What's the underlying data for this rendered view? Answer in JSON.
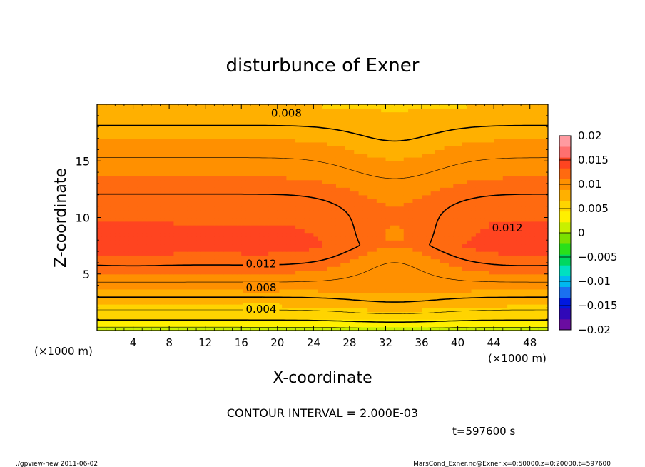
{
  "chart_data": {
    "type": "heatmap",
    "title": "disturbunce of Exner",
    "xlabel": "X-coordinate",
    "ylabel": "Z-coordinate",
    "x_unit_left": "(×1000 m)",
    "x_unit_right": "(×1000 m)",
    "xlim": [
      0,
      50
    ],
    "ylim": [
      0,
      20
    ],
    "x_ticks": [
      4,
      8,
      12,
      16,
      20,
      24,
      28,
      32,
      36,
      40,
      44,
      48
    ],
    "y_ticks": [
      5,
      10,
      15
    ],
    "contour_interval_text": "CONTOUR INTERVAL = 2.000E-03",
    "time_text": "t=597600 s",
    "colorbar": {
      "min": -0.02,
      "max": 0.02,
      "tick_labels": [
        "0.02",
        "0.015",
        "0.01",
        "0.005",
        "0",
        "−0.005",
        "−0.01",
        "−0.015",
        "−0.02"
      ],
      "tick_values": [
        0.02,
        0.015,
        0.01,
        0.005,
        0,
        -0.005,
        -0.01,
        -0.015,
        -0.02
      ],
      "colors": [
        "#6a0ca0",
        "#3008b8",
        "#0018e0",
        "#1a70f0",
        "#00b8f0",
        "#00e0c0",
        "#00d860",
        "#2ae01a",
        "#7ae000",
        "#c8f000",
        "#fff000",
        "#ffd400",
        "#ffb000",
        "#ff9000",
        "#ff6a10",
        "#ff4420",
        "#ff7070",
        "#ff9aa0"
      ]
    },
    "contour_labels": [
      {
        "text": "0.008",
        "x": 21.0,
        "z": 19.2
      },
      {
        "text": "0.012",
        "x": 45.5,
        "z": 9.1
      },
      {
        "text": "0.012",
        "x": 18.2,
        "z": 5.9
      },
      {
        "text": "0.008",
        "x": 18.2,
        "z": 3.8
      },
      {
        "text": "0.004",
        "x": 18.2,
        "z": 1.9
      }
    ],
    "field_description": "Exner perturbation, max ~0.014 near z=7.5 on both lateral sides, minimum near x=33"
  },
  "footer": {
    "left_text": "./gpview-new  2011-06-02",
    "right_text": "MarsCond_Exner.nc@Exner,x=0:50000,z=0:20000,t=597600"
  }
}
